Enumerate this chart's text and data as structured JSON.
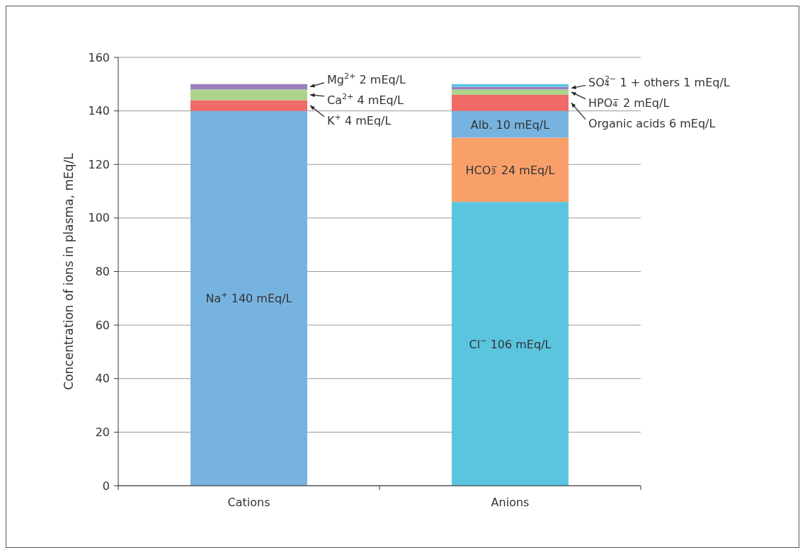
{
  "chart_data": {
    "type": "bar",
    "stacked": true,
    "ylabel": "Concentration of ions in plasma, mEq/L",
    "categories": [
      "Cations",
      "Anions"
    ],
    "series": [
      {
        "name": "Na$^{+}$ 140 mEq/L",
        "color": "#77b3e0",
        "values": [
          140,
          null
        ]
      },
      {
        "name": "K$^{+}$ 4 mEq/L",
        "color": "#f06b67",
        "values": [
          4,
          null
        ]
      },
      {
        "name": "Ca$^{2+}$ 4 mEq/L",
        "color": "#acd48a",
        "values": [
          4,
          null
        ]
      },
      {
        "name": "Mg$^{2+}$ 2 mEq/L",
        "color": "#9b80bd",
        "values": [
          2,
          null
        ]
      },
      {
        "name": "Cl$^{−}$ 106 mEq/L",
        "color": "#5bc5e0",
        "values": [
          null,
          106
        ]
      },
      {
        "name": "HCO$_{3}$$^{−}$ 24 mEq/L",
        "color": "#f8a06a",
        "values": [
          null,
          24
        ]
      },
      {
        "name": "Alb. 10 mEq/L",
        "color": "#77b3e0",
        "values": [
          null,
          10
        ]
      },
      {
        "name": "Organic acids 6 mEq/L",
        "color": "#f06b67",
        "values": [
          null,
          6
        ]
      },
      {
        "name": "HPO$_{4}$$^{−}$ 2 mEq/L",
        "color": "#acd48a",
        "values": [
          null,
          2
        ]
      },
      {
        "name": "SO$_{4}$$^{2−}$ 1 + others 1 mEq/L",
        "color": "#9b80bd",
        "values": [
          null,
          1
        ]
      },
      {
        "color": "#5bc5e0",
        "values": [
          null,
          1
        ]
      }
    ],
    "ylim": [
      0,
      160
    ],
    "yticks": [
      0,
      20,
      40,
      60,
      80,
      100,
      120,
      140,
      160
    ],
    "grid": "y"
  }
}
